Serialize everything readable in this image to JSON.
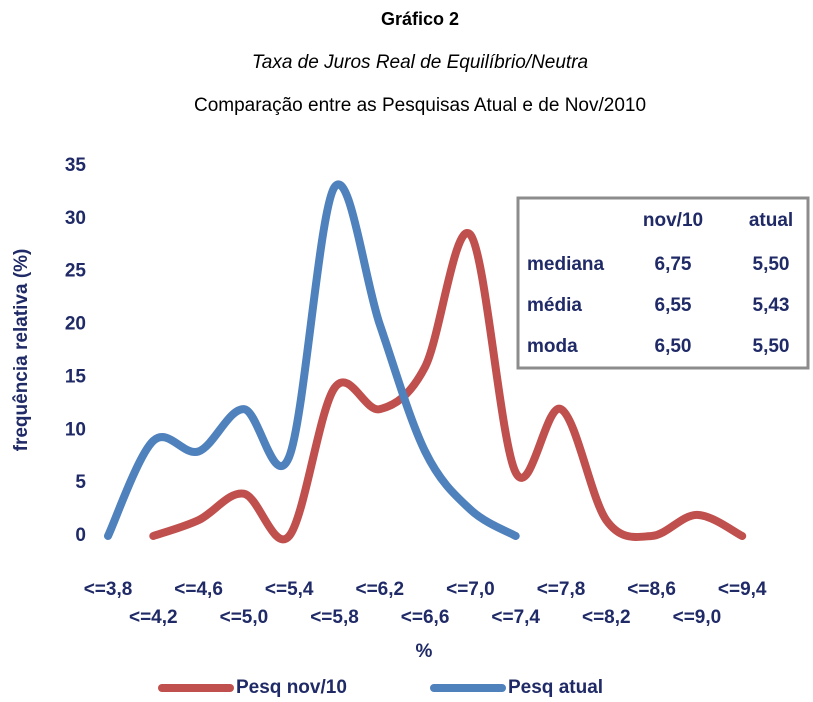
{
  "chart_data": {
    "type": "line",
    "title": "Gráfico 2",
    "subtitle": "Taxa de Juros Real de Equilíbrio/Neutra",
    "subtitle2": "Comparação entre as Pesquisas Atual e de Nov/2010",
    "x_label": "%",
    "y_label": "frequência relativa (%)",
    "categories": [
      "<=3,8",
      "<=4,2",
      "<=4,6",
      "<=5,0",
      "<=5,4",
      "<=5,8",
      "<=6,2",
      "<=6,6",
      "<=7,0",
      "<=7,4",
      "<=7,8",
      "<=8,2",
      "<=8,6",
      "<=9,0",
      "<=9,4"
    ],
    "series": [
      {
        "name": "Pesq nov/10",
        "color": "#c0504d",
        "values": [
          null,
          0,
          1.5,
          4,
          0,
          14,
          12,
          16,
          28.5,
          6,
          12,
          1.5,
          0,
          2,
          0
        ]
      },
      {
        "name": "Pesq atual",
        "color": "#4f81bd",
        "values": [
          0,
          9,
          8,
          12,
          7.5,
          33,
          20,
          8,
          2.5,
          0,
          null,
          null,
          null,
          null,
          null
        ]
      }
    ],
    "ylim": [
      0,
      35
    ],
    "yticks": [
      0,
      5,
      10,
      15,
      20,
      25,
      30,
      35
    ],
    "legend": "bottom",
    "table": {
      "columns": [
        "nov/10",
        "atual"
      ],
      "rows": [
        [
          "mediana",
          "6,75",
          "5,50"
        ],
        [
          "média",
          "6,55",
          "5,43"
        ],
        [
          "moda",
          "6,50",
          "5,50"
        ]
      ]
    }
  }
}
